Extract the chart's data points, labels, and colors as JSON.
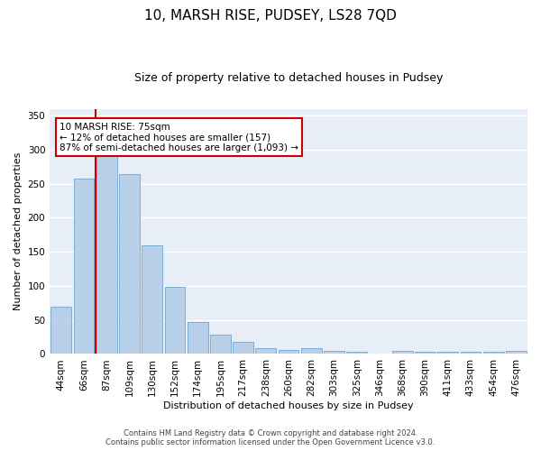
{
  "title1": "10, MARSH RISE, PUDSEY, LS28 7QD",
  "title2": "Size of property relative to detached houses in Pudsey",
  "xlabel": "Distribution of detached houses by size in Pudsey",
  "ylabel": "Number of detached properties",
  "categories": [
    "44sqm",
    "66sqm",
    "87sqm",
    "109sqm",
    "130sqm",
    "152sqm",
    "174sqm",
    "195sqm",
    "217sqm",
    "238sqm",
    "260sqm",
    "282sqm",
    "303sqm",
    "325sqm",
    "346sqm",
    "368sqm",
    "390sqm",
    "411sqm",
    "433sqm",
    "454sqm",
    "476sqm"
  ],
  "values": [
    70,
    258,
    292,
    264,
    160,
    98,
    47,
    29,
    18,
    9,
    6,
    8,
    5,
    3,
    0,
    4,
    3,
    3,
    3,
    3,
    4
  ],
  "bar_color": "#b8d0ea",
  "bar_edge_color": "#6fa8d0",
  "vline_x": 1.5,
  "vline_color": "#cc0000",
  "annotation_text": "10 MARSH RISE: 75sqm\n← 12% of detached houses are smaller (157)\n87% of semi-detached houses are larger (1,093) →",
  "annotation_box_color": "#ffffff",
  "annotation_box_edge": "#cc0000",
  "ylim": [
    0,
    360
  ],
  "yticks": [
    0,
    50,
    100,
    150,
    200,
    250,
    300,
    350
  ],
  "bg_color": "#e8eef8",
  "grid_color": "#ffffff",
  "footer1": "Contains HM Land Registry data © Crown copyright and database right 2024.",
  "footer2": "Contains public sector information licensed under the Open Government Licence v3.0.",
  "title1_fontsize": 11,
  "title2_fontsize": 9,
  "axis_label_fontsize": 8,
  "tick_fontsize": 7.5,
  "annotation_fontsize": 7.5,
  "footer_fontsize": 6
}
